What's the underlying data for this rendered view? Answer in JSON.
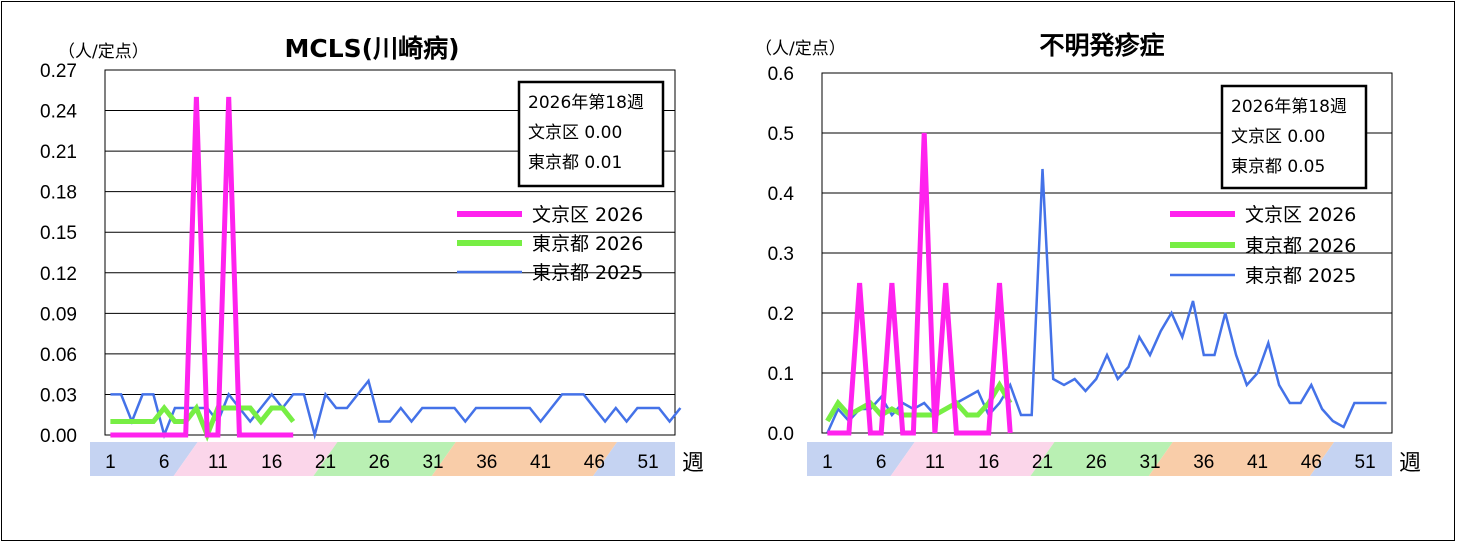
{
  "chart_data": [
    {
      "type": "line",
      "title": "MCLS(川崎病)",
      "unit_label": "（人/定点）",
      "x_unit": "週",
      "ylim": [
        0,
        0.27
      ],
      "y_ticks": [
        "0.00",
        "0.03",
        "0.06",
        "0.09",
        "0.12",
        "0.15",
        "0.18",
        "0.21",
        "0.24",
        "0.27"
      ],
      "x_tick_labels": [
        "1",
        "6",
        "11",
        "16",
        "21",
        "26",
        "31",
        "36",
        "41",
        "46",
        "51"
      ],
      "info_box": {
        "line1": "2026年第18週",
        "line2": "文京区  0.00",
        "line3": "東京都  0.01"
      },
      "legend_position": "right",
      "series": [
        {
          "name": "東京都 2025",
          "color": "#4472e8",
          "values": [
            0.03,
            0.03,
            0.01,
            0.03,
            0.03,
            0.0,
            0.02,
            0.02,
            0.02,
            0.02,
            0.01,
            0.03,
            0.02,
            0.01,
            0.02,
            0.03,
            0.02,
            0.03,
            0.03,
            0.0,
            0.03,
            0.02,
            0.02,
            0.03,
            0.04,
            0.01,
            0.01,
            0.02,
            0.01,
            0.02,
            0.02,
            0.02,
            0.02,
            0.01,
            0.02,
            0.02,
            0.02,
            0.02,
            0.02,
            0.02,
            0.01,
            0.02,
            0.03,
            0.03,
            0.03,
            0.02,
            0.01,
            0.02,
            0.01,
            0.02,
            0.02,
            0.02,
            0.01,
            0.02
          ]
        },
        {
          "name": "東京都 2026",
          "color": "#77ee44",
          "values": [
            0.01,
            0.01,
            0.01,
            0.01,
            0.01,
            0.02,
            0.01,
            0.01,
            0.02,
            0.0,
            0.02,
            0.02,
            0.02,
            0.02,
            0.01,
            0.02,
            0.02,
            0.01
          ]
        },
        {
          "name": "文京区 2026",
          "color": "#ff22ee",
          "values": [
            0,
            0,
            0,
            0,
            0,
            0,
            0,
            0,
            0.25,
            0,
            0,
            0.25,
            0,
            0,
            0,
            0,
            0,
            0
          ]
        }
      ]
    },
    {
      "type": "line",
      "title": "不明発疹症",
      "unit_label": "（人/定点）",
      "x_unit": "週",
      "ylim": [
        0,
        0.6
      ],
      "y_ticks": [
        "0.0",
        "0.1",
        "0.2",
        "0.3",
        "0.4",
        "0.5",
        "0.6"
      ],
      "x_tick_labels": [
        "1",
        "6",
        "11",
        "16",
        "21",
        "26",
        "31",
        "36",
        "41",
        "46",
        "51"
      ],
      "info_box": {
        "line1": "2026年第18週",
        "line2": "文京区  0.00",
        "line3": "東京都  0.05"
      },
      "legend_position": "right",
      "series": [
        {
          "name": "東京都 2025",
          "color": "#4472e8",
          "values": [
            0.0,
            0.04,
            0.02,
            0.04,
            0.04,
            0.06,
            0.03,
            0.05,
            0.04,
            0.05,
            0.03,
            0.04,
            0.05,
            0.06,
            0.07,
            0.03,
            0.05,
            0.08,
            0.03,
            0.03,
            0.44,
            0.09,
            0.08,
            0.09,
            0.07,
            0.09,
            0.13,
            0.09,
            0.11,
            0.16,
            0.13,
            0.17,
            0.2,
            0.16,
            0.22,
            0.13,
            0.13,
            0.2,
            0.13,
            0.08,
            0.1,
            0.15,
            0.08,
            0.05,
            0.05,
            0.08,
            0.04,
            0.02,
            0.01,
            0.05,
            0.05,
            0.05,
            0.05
          ]
        },
        {
          "name": "東京都 2026",
          "color": "#77ee44",
          "values": [
            0.02,
            0.05,
            0.03,
            0.04,
            0.05,
            0.03,
            0.04,
            0.03,
            0.03,
            0.03,
            0.03,
            0.04,
            0.05,
            0.03,
            0.03,
            0.05,
            0.08,
            0.05
          ]
        },
        {
          "name": "文京区 2026",
          "color": "#ff22ee",
          "values": [
            0,
            0,
            0,
            0.25,
            0,
            0,
            0.25,
            0,
            0,
            0.5,
            0,
            0.25,
            0,
            0,
            0,
            0,
            0.25,
            0
          ]
        }
      ]
    }
  ],
  "colors": {
    "band_blue": "#c5d3f2",
    "band_pink": "#fbd6ea",
    "band_green": "#b9f0b3",
    "band_orange": "#f9cda9"
  }
}
